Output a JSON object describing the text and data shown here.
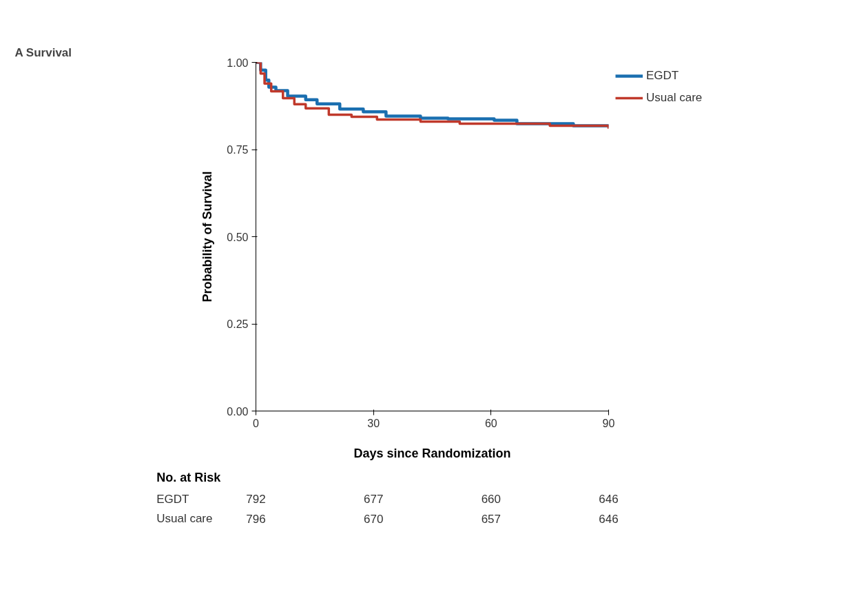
{
  "chart_data": {
    "type": "step",
    "title": "A  Survival",
    "xlabel": "Days since Randomization",
    "ylabel": "Probability of Survival",
    "xlim": [
      0,
      90
    ],
    "xticks": [
      0,
      30,
      60,
      90
    ],
    "ylim": [
      0,
      1
    ],
    "yticks": [
      {
        "value": 1,
        "label": "1.00"
      },
      {
        "value": 0.75,
        "label": "0.75"
      },
      {
        "value": 0.5,
        "label": "0.50"
      },
      {
        "value": 0.25,
        "label": "0.25"
      },
      {
        "value": 0,
        "label": "0.00"
      }
    ],
    "series": [
      {
        "name": "EGDT",
        "color": "#1a6fb0",
        "x": [
          0,
          1.2,
          2.5,
          3.3,
          5.1,
          8.1,
          12.7,
          15.6,
          21.4,
          27.4,
          33.2,
          42,
          49,
          60.8,
          66.6,
          81,
          90
        ],
        "values": [
          1.0,
          0.978,
          0.949,
          0.929,
          0.919,
          0.903,
          0.893,
          0.881,
          0.866,
          0.858,
          0.846,
          0.84,
          0.838,
          0.834,
          0.824,
          0.818,
          0.814
        ]
      },
      {
        "name": "Usual care",
        "color": "#c0392b",
        "x": [
          0,
          1.2,
          2.2,
          3.9,
          6.9,
          9.8,
          12.7,
          18.6,
          24.4,
          30.9,
          42,
          52,
          63.6,
          75,
          90
        ],
        "values": [
          1.0,
          0.968,
          0.939,
          0.917,
          0.897,
          0.88,
          0.868,
          0.85,
          0.844,
          0.836,
          0.83,
          0.824,
          0.824,
          0.818,
          0.81
        ]
      }
    ],
    "legend": "top right",
    "grid": false,
    "annotations": [
      "No. at Risk",
      "EGDT",
      "792",
      "677",
      "660",
      "646",
      "Usual care",
      "796",
      "670",
      "657",
      "646"
    ]
  }
}
